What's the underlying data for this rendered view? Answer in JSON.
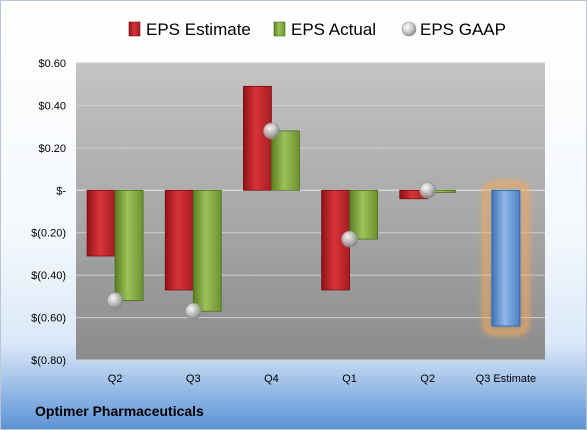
{
  "company": "Optimer Pharmaceuticals",
  "colors": {
    "estimate": "#c0262e",
    "actual": "#7ea33a",
    "gaap": "#b4b4b4",
    "forecast": "#5b8fd0",
    "forecast_glow": "#f3a95a"
  },
  "chart_data": {
    "type": "bar",
    "title": "",
    "xlabel": "",
    "ylabel": "",
    "ylim": [
      -0.8,
      0.6
    ],
    "yticks": [
      0.6,
      0.4,
      0.2,
      0,
      -0.2,
      -0.4,
      -0.6,
      -0.8
    ],
    "ytick_labels": [
      "$0.60",
      "$0.40",
      "$0.20",
      "$-",
      "$(0.20)",
      "$(0.40)",
      "$(0.60)",
      "$(0.80)"
    ],
    "categories": [
      "Q2",
      "Q3",
      "Q4",
      "Q1",
      "Q2",
      "Q3 Estimate"
    ],
    "legend_position": "top",
    "series": [
      {
        "name": "EPS Estimate",
        "values": [
          -0.31,
          -0.47,
          0.49,
          -0.47,
          -0.04,
          -0.64
        ]
      },
      {
        "name": "EPS Actual",
        "values": [
          -0.52,
          -0.57,
          0.28,
          -0.23,
          -0.01,
          null
        ]
      },
      {
        "name": "EPS GAAP",
        "values": [
          -0.52,
          -0.57,
          0.28,
          -0.23,
          0.0,
          null
        ]
      }
    ]
  }
}
